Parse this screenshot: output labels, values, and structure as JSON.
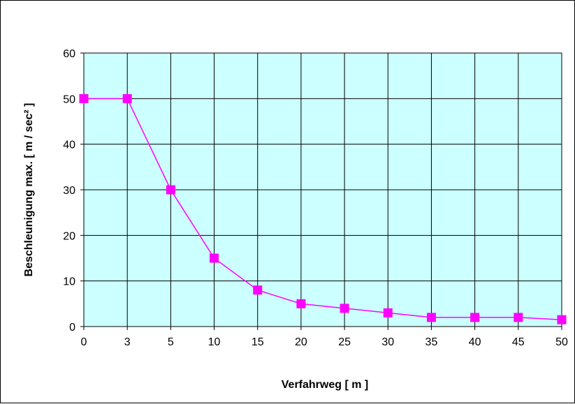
{
  "chart_data": {
    "type": "line",
    "title": "",
    "xlabel": "Verfahrweg [ m ]",
    "ylabel": "Beschleunigung max. [ m / sec² ]",
    "categories": [
      "0",
      "3",
      "5",
      "10",
      "15",
      "20",
      "25",
      "30",
      "35",
      "40",
      "45",
      "50"
    ],
    "series": [
      {
        "values": [
          50,
          50,
          30,
          15,
          8,
          5,
          4,
          3,
          2,
          2,
          2,
          1.5
        ]
      }
    ],
    "ylim": [
      0,
      60
    ],
    "yticks": [
      0,
      10,
      20,
      30,
      40,
      50,
      60
    ],
    "grid": true,
    "legend": "none",
    "colors": {
      "plot_background": "#ccffff",
      "series_line": "#ff00ff",
      "series_marker": "#ff00ff",
      "grid": "#000000"
    }
  }
}
